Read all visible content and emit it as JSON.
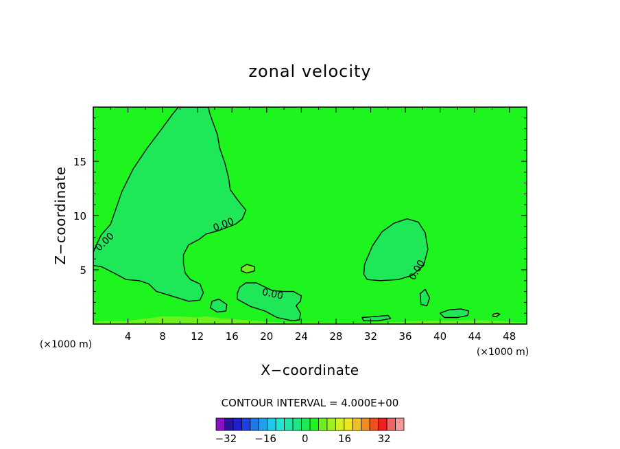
{
  "chart_data": {
    "type": "heatmap",
    "title": "zonal velocity",
    "xlabel": "X−coordinate",
    "ylabel": "Z−coordinate",
    "x_units": "(×1000 m)",
    "y_units": "(×1000 m)",
    "xlim": [
      0,
      50
    ],
    "ylim": [
      0,
      20
    ],
    "x_ticks": [
      "4",
      "8",
      "12",
      "16",
      "20",
      "24",
      "28",
      "32",
      "36",
      "40",
      "44",
      "48"
    ],
    "y_ticks": [
      "5",
      "10",
      "15"
    ],
    "contour_interval_label": "CONTOUR INTERVAL = 4.000E+00",
    "contour_line_label": "0.00",
    "background_color": "#1ef51e",
    "colorbar": {
      "min": -36,
      "max": 40,
      "interval": 4,
      "tick_labels": [
        "−32",
        "−16",
        "0",
        "16",
        "32"
      ],
      "colors": [
        "#8a12c4",
        "#27149c",
        "#1e1ed2",
        "#1e3ee6",
        "#1e78ec",
        "#1ea0ec",
        "#1ec8e8",
        "#1ee6d2",
        "#1ee6a6",
        "#1ee680",
        "#1ee858",
        "#1ef51e",
        "#6ef01e",
        "#a0f01e",
        "#d4f01e",
        "#f0e61e",
        "#f0c01e",
        "#f08c1e",
        "#f0501e",
        "#f01e1e",
        "#f06464",
        "#f29a9a"
      ]
    },
    "regions": [
      {
        "name": "negative-cell-upper-left",
        "level": "0 to -4",
        "color": "#1ee858",
        "boundary": [
          [
            0.9,
            5.3
          ],
          [
            2.4,
            4.7
          ],
          [
            3.8,
            4.1
          ],
          [
            5.3,
            4.0
          ],
          [
            6.4,
            3.7
          ],
          [
            7.3,
            3.0
          ],
          [
            9.0,
            2.6
          ],
          [
            11.0,
            2.1
          ],
          [
            12.3,
            2.2
          ],
          [
            12.7,
            2.9
          ],
          [
            12.3,
            3.7
          ],
          [
            11.2,
            4.1
          ],
          [
            10.6,
            4.7
          ],
          [
            10.4,
            5.6
          ],
          [
            10.4,
            6.4
          ],
          [
            11.0,
            7.3
          ],
          [
            12.2,
            7.8
          ],
          [
            13.0,
            8.3
          ],
          [
            14.4,
            8.6
          ],
          [
            16.4,
            9.2
          ],
          [
            17.2,
            9.7
          ],
          [
            17.6,
            10.5
          ],
          [
            16.6,
            11.5
          ],
          [
            15.8,
            12.4
          ],
          [
            15.6,
            13.5
          ],
          [
            15.2,
            14.8
          ],
          [
            14.6,
            16.2
          ],
          [
            14.3,
            17.5
          ],
          [
            13.8,
            18.6
          ],
          [
            13.4,
            19.5
          ],
          [
            13.3,
            20.0
          ],
          [
            9.8,
            20.0
          ],
          [
            9.1,
            19.3
          ],
          [
            7.9,
            18.0
          ],
          [
            6.2,
            16.2
          ],
          [
            4.6,
            14.3
          ],
          [
            3.3,
            12.2
          ],
          [
            2.6,
            10.6
          ],
          [
            2.0,
            9.2
          ],
          [
            0.9,
            8.2
          ],
          [
            0.3,
            7.2
          ],
          [
            0.0,
            6.6
          ],
          [
            0.0,
            5.4
          ]
        ]
      },
      {
        "name": "negative-cell-right",
        "level": "0 to -4",
        "color": "#1ee858",
        "boundary": [
          [
            31.3,
            5.5
          ],
          [
            32.2,
            7.2
          ],
          [
            33.3,
            8.5
          ],
          [
            34.7,
            9.3
          ],
          [
            36.2,
            9.7
          ],
          [
            37.5,
            9.4
          ],
          [
            38.3,
            8.4
          ],
          [
            38.6,
            6.9
          ],
          [
            38.1,
            5.4
          ],
          [
            36.8,
            4.5
          ],
          [
            35.2,
            4.1
          ],
          [
            33.1,
            4.0
          ],
          [
            31.6,
            4.1
          ],
          [
            31.2,
            4.6
          ]
        ]
      },
      {
        "name": "negative-cell-lower-center",
        "level": "0 to -4",
        "color": "#1ee858",
        "boundary": [
          [
            16.6,
            2.3
          ],
          [
            18.2,
            1.6
          ],
          [
            19.8,
            1.2
          ],
          [
            21.2,
            0.6
          ],
          [
            23.0,
            0.3
          ],
          [
            23.8,
            0.4
          ],
          [
            23.9,
            1.0
          ],
          [
            23.4,
            1.7
          ],
          [
            23.9,
            2.1
          ],
          [
            24.0,
            2.6
          ],
          [
            23.1,
            3.0
          ],
          [
            21.9,
            3.0
          ],
          [
            20.6,
            3.1
          ],
          [
            19.6,
            3.5
          ],
          [
            18.8,
            3.8
          ],
          [
            17.6,
            3.8
          ],
          [
            16.9,
            3.4
          ],
          [
            16.6,
            2.8
          ]
        ]
      },
      {
        "name": "negative-blob-small-17",
        "level": "0 to -4",
        "color": "#1ee858",
        "boundary": [
          [
            13.5,
            1.5
          ],
          [
            14.3,
            1.1
          ],
          [
            15.3,
            1.2
          ],
          [
            15.4,
            1.8
          ],
          [
            14.5,
            2.3
          ],
          [
            13.7,
            2.1
          ]
        ]
      },
      {
        "name": "negative-blob-small-38",
        "level": "0 to -4",
        "color": "#1ee858",
        "boundary": [
          [
            37.8,
            1.8
          ],
          [
            38.5,
            1.7
          ],
          [
            38.8,
            2.4
          ],
          [
            38.3,
            3.2
          ],
          [
            37.7,
            2.8
          ]
        ]
      },
      {
        "name": "negative-blob-small-41",
        "level": "0 to -4",
        "color": "#1ee858",
        "boundary": [
          [
            40.0,
            1.0
          ],
          [
            41.0,
            1.3
          ],
          [
            42.4,
            1.4
          ],
          [
            43.3,
            1.2
          ],
          [
            43.2,
            0.8
          ],
          [
            42.0,
            0.6
          ],
          [
            40.5,
            0.6
          ]
        ]
      },
      {
        "name": "negative-blob-small-32",
        "level": "0 to -4",
        "color": "#1ee858",
        "boundary": [
          [
            31.0,
            0.6
          ],
          [
            32.6,
            0.7
          ],
          [
            34.0,
            0.8
          ],
          [
            34.3,
            0.5
          ],
          [
            32.8,
            0.3
          ],
          [
            31.2,
            0.3
          ]
        ]
      },
      {
        "name": "positive-blob-18",
        "level": "0 to 4",
        "color": "#6ef01e",
        "boundary": [
          [
            17.1,
            5.2
          ],
          [
            17.7,
            5.5
          ],
          [
            18.6,
            5.3
          ],
          [
            18.6,
            4.9
          ],
          [
            17.7,
            4.7
          ],
          [
            17.1,
            4.9
          ]
        ]
      },
      {
        "name": "positive-blob-46",
        "level": "0 to 4",
        "color": "#6ef01e",
        "boundary": [
          [
            46.1,
            0.9
          ],
          [
            46.6,
            1.0
          ],
          [
            46.9,
            0.9
          ],
          [
            46.5,
            0.7
          ],
          [
            46.1,
            0.7
          ]
        ]
      }
    ],
    "surface_band": {
      "level": "0 to 4",
      "color": "#6ef01e",
      "boundary": [
        [
          0.0,
          0.2
        ],
        [
          2.0,
          0.3
        ],
        [
          4.0,
          0.3
        ],
        [
          6.0,
          0.5
        ],
        [
          8.0,
          0.7
        ],
        [
          10.0,
          0.7
        ],
        [
          12.0,
          0.6
        ],
        [
          13.0,
          0.7
        ],
        [
          15.0,
          0.5
        ],
        [
          17.0,
          0.4
        ],
        [
          20.0,
          0.2
        ],
        [
          30.0,
          0.1
        ],
        [
          40.0,
          0.3
        ],
        [
          45.0,
          0.35
        ],
        [
          48.0,
          0.2
        ],
        [
          50.0,
          0.15
        ],
        [
          50.0,
          0.0
        ],
        [
          0.0,
          0.0
        ]
      ]
    },
    "contour_labels": [
      {
        "text_key": "contour_line_label",
        "x": 1.3,
        "y": 7.6,
        "angle_deg": -44
      },
      {
        "text_key": "contour_line_label",
        "x": 15.0,
        "y": 9.2,
        "angle_deg": -21
      },
      {
        "text_key": "contour_line_label",
        "x": 20.7,
        "y": 2.8,
        "angle_deg": 12
      },
      {
        "text_key": "contour_line_label",
        "x": 37.3,
        "y": 5.0,
        "angle_deg": -60
      }
    ]
  }
}
